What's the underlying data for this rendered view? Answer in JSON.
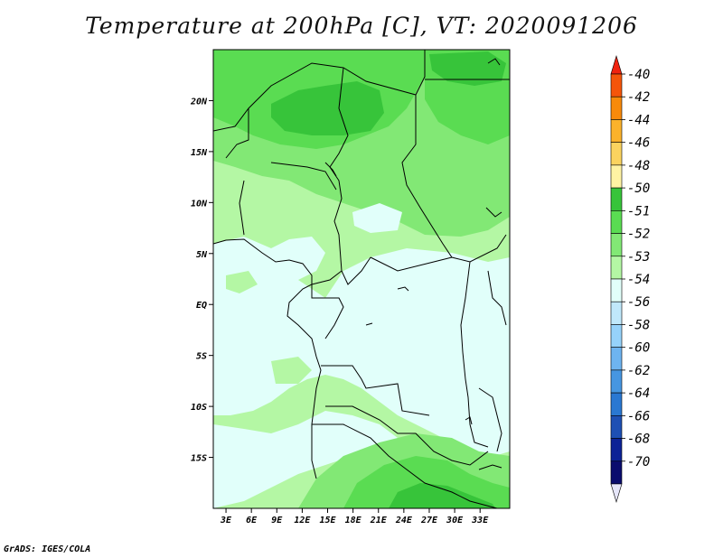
{
  "title": "Temperature at 200hPa [C], VT: 2020091206",
  "footer": "GrADS: IGES/COLA",
  "map": {
    "lon_ticks": [
      "3E",
      "6E",
      "9E",
      "12E",
      "15E",
      "18E",
      "21E",
      "24E",
      "27E",
      "30E",
      "33E"
    ],
    "lat_ticks": [
      "20N",
      "15N",
      "10N",
      "5N",
      "EQ",
      "5S",
      "10S",
      "15S"
    ],
    "lon_values": [
      3,
      6,
      9,
      12,
      15,
      18,
      21,
      24,
      27,
      30,
      33
    ],
    "lat_values": [
      20,
      15,
      10,
      5,
      0,
      -5,
      -10,
      -15
    ],
    "lon_range": [
      1.5,
      36.5
    ],
    "lat_range": [
      -20,
      25
    ]
  },
  "colorbar": {
    "labels": [
      "-40",
      "-42",
      "-44",
      "-46",
      "-48",
      "-50",
      "-51",
      "-52",
      "-53",
      "-54",
      "-56",
      "-58",
      "-60",
      "-62",
      "-64",
      "-66",
      "-68",
      "-70"
    ],
    "colors": [
      "#f0230f",
      "#f5550a",
      "#f88a0a",
      "#fbb22b",
      "#fbd35f",
      "#fff3a3",
      "#37c43a",
      "#5adc52",
      "#82e875",
      "#b4f7a4",
      "#e1fffa",
      "#c0e8fb",
      "#96d2fa",
      "#6eb4f0",
      "#4696e1",
      "#2a78d2",
      "#1e50b4",
      "#0c2296",
      "#0a0c6e",
      "#e6e6fa"
    ]
  },
  "legend_colors": {
    "g51": "#37c43a",
    "g52": "#5adc52",
    "g53": "#82e875",
    "g54": "#b4f7a4",
    "c56": "#e1fffa"
  }
}
